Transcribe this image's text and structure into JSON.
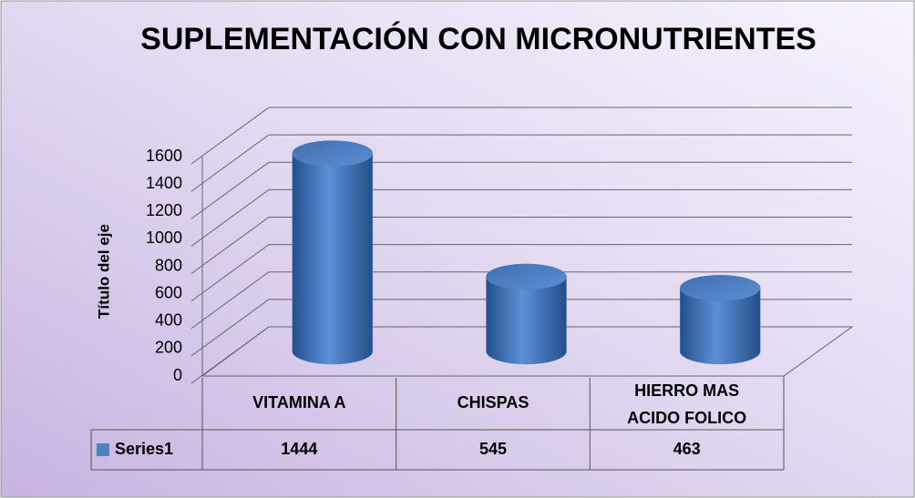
{
  "chart_data": {
    "type": "bar3d",
    "title": "SUPLEMENTACIÓN CON MICRONUTRIENTES",
    "y_axis_label": "Título del eje",
    "categories": [
      "VITAMINA A",
      "CHISPAS",
      "HIERRO MAS ACIDO FOLICO"
    ],
    "series": [
      {
        "name": "Series1",
        "color": "#4f81bd",
        "values": [
          1444,
          545,
          463
        ]
      }
    ],
    "ylim": [
      0,
      1600
    ],
    "yticks": [
      0,
      200,
      400,
      600,
      800,
      1000,
      1200,
      1400,
      1600
    ],
    "grid": true
  }
}
